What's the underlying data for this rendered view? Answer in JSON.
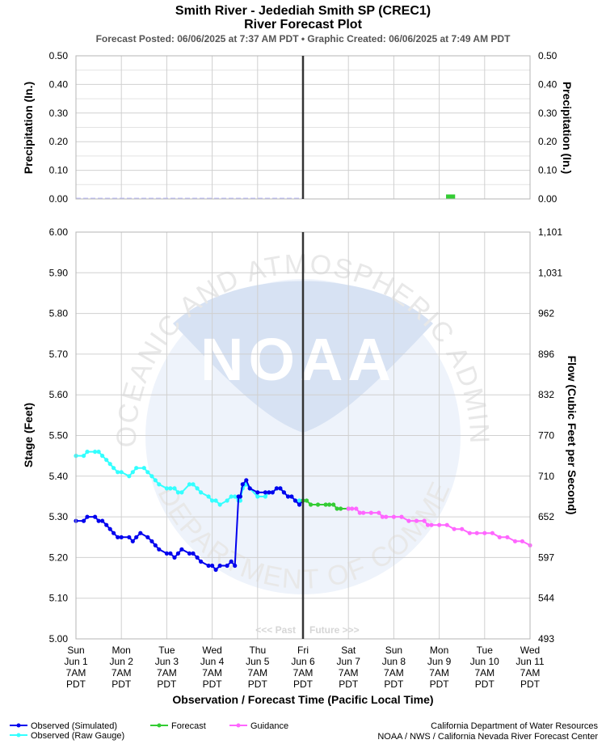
{
  "chart_data": {
    "type": "line",
    "title": "Smith River - Jedediah Smith SP (CREC1)",
    "subtitle": "River Forecast Plot",
    "posted": "Forecast Posted: 06/06/2025 at 7:37 AM PDT  •  Graphic Created: 06/06/2025 at 7:49 AM PDT",
    "xlabel": "Observation / Forecast Time (Pacific Local Time)",
    "x_ticks": [
      [
        "Sun",
        "Jun 1",
        "7AM",
        "PDT"
      ],
      [
        "Mon",
        "Jun 2",
        "7AM",
        "PDT"
      ],
      [
        "Tue",
        "Jun 3",
        "7AM",
        "PDT"
      ],
      [
        "Wed",
        "Jun 4",
        "7AM",
        "PDT"
      ],
      [
        "Thu",
        "Jun 5",
        "7AM",
        "PDT"
      ],
      [
        "Fri",
        "Jun 6",
        "7AM",
        "PDT"
      ],
      [
        "Sat",
        "Jun 7",
        "7AM",
        "PDT"
      ],
      [
        "Sun",
        "Jun 8",
        "7AM",
        "PDT"
      ],
      [
        "Mon",
        "Jun 9",
        "7AM",
        "PDT"
      ],
      [
        "Tue",
        "Jun 10",
        "7AM",
        "PDT"
      ],
      [
        "Wed",
        "Jun 11",
        "7AM",
        "PDT"
      ]
    ],
    "now_day": 5,
    "past_label": "<<< Past",
    "future_label": "Future >>>",
    "precip": {
      "ylabel_left": "Precipitation (In.)",
      "ylabel_right": "Precipitation (In.)",
      "ylim": [
        0,
        0.5
      ],
      "ticks": [
        "0.00",
        "0.10",
        "0.20",
        "0.30",
        "0.40",
        "0.50"
      ],
      "observed": {
        "x": [
          0,
          5
        ],
        "y": [
          0,
          0
        ]
      },
      "forecast": {
        "x": [
          8.15,
          8.35
        ],
        "y": [
          0.01,
          0.01
        ]
      }
    },
    "stage": {
      "ylabel_left": "Stage (Feet)",
      "ylabel_right": "Flow (Cubic Feet per Second)",
      "ylim": [
        5.0,
        6.0
      ],
      "ticks_left": [
        "5.00",
        "5.10",
        "5.20",
        "5.30",
        "5.40",
        "5.50",
        "5.60",
        "5.70",
        "5.80",
        "5.90",
        "6.00"
      ],
      "ticks_right": [
        "493",
        "544",
        "597",
        "652",
        "710",
        "770",
        "832",
        "896",
        "962",
        "1,031",
        "1,101"
      ]
    },
    "series": [
      {
        "name": "Observed (Simulated)",
        "color": "#0000ee",
        "x": [
          0,
          0.17,
          0.25,
          0.42,
          0.5,
          0.58,
          0.67,
          0.75,
          0.83,
          0.92,
          1.0,
          1.17,
          1.25,
          1.33,
          1.42,
          1.58,
          1.67,
          1.75,
          1.83,
          2.0,
          2.08,
          2.17,
          2.25,
          2.33,
          2.5,
          2.58,
          2.67,
          2.75,
          2.92,
          3.0,
          3.08,
          3.17,
          3.33,
          3.42,
          3.5,
          3.58,
          3.62,
          3.67,
          3.75,
          3.83,
          4.0,
          4.17,
          4.25,
          4.33,
          4.42,
          4.5,
          4.58,
          4.67,
          4.75,
          4.83,
          4.92,
          5.0
        ],
        "y": [
          5.29,
          5.29,
          5.3,
          5.3,
          5.29,
          5.29,
          5.28,
          5.27,
          5.26,
          5.25,
          5.25,
          5.25,
          5.24,
          5.25,
          5.26,
          5.25,
          5.24,
          5.23,
          5.22,
          5.21,
          5.21,
          5.2,
          5.21,
          5.22,
          5.21,
          5.21,
          5.2,
          5.19,
          5.18,
          5.18,
          5.17,
          5.18,
          5.18,
          5.19,
          5.18,
          5.35,
          5.35,
          5.38,
          5.39,
          5.37,
          5.36,
          5.36,
          5.36,
          5.36,
          5.37,
          5.37,
          5.36,
          5.35,
          5.35,
          5.34,
          5.33,
          5.34
        ]
      },
      {
        "name": "Observed (Raw Gauge)",
        "color": "#33ffff",
        "x": [
          0,
          0.17,
          0.25,
          0.42,
          0.5,
          0.58,
          0.67,
          0.75,
          0.83,
          0.92,
          1.0,
          1.17,
          1.25,
          1.33,
          1.5,
          1.58,
          1.67,
          1.75,
          1.83,
          2.0,
          2.08,
          2.17,
          2.25,
          2.33,
          2.5,
          2.58,
          2.67,
          2.75,
          2.92,
          3.0,
          3.08,
          3.17,
          3.33,
          3.42,
          3.5,
          3.58,
          3.62,
          3.67,
          3.75,
          3.83,
          4.0,
          4.17,
          4.25,
          4.33,
          4.42,
          4.5,
          4.58,
          4.67,
          4.75,
          4.83,
          4.92,
          5.0
        ],
        "y": [
          5.45,
          5.45,
          5.46,
          5.46,
          5.46,
          5.45,
          5.44,
          5.43,
          5.42,
          5.41,
          5.41,
          5.4,
          5.41,
          5.42,
          5.42,
          5.41,
          5.4,
          5.39,
          5.38,
          5.37,
          5.37,
          5.37,
          5.36,
          5.36,
          5.38,
          5.38,
          5.37,
          5.36,
          5.35,
          5.34,
          5.34,
          5.33,
          5.34,
          5.35,
          5.35,
          5.34,
          5.34,
          5.37,
          5.38,
          5.37,
          5.35,
          5.35,
          5.36,
          5.36,
          5.37,
          5.37,
          5.36,
          5.35,
          5.35,
          5.34,
          5.34,
          5.34
        ]
      },
      {
        "name": "Forecast",
        "color": "#33cc33",
        "x": [
          5.0,
          5.08,
          5.17,
          5.33,
          5.5,
          5.58,
          5.67,
          5.75,
          5.83,
          6.0
        ],
        "y": [
          5.34,
          5.34,
          5.33,
          5.33,
          5.33,
          5.33,
          5.33,
          5.32,
          5.32,
          5.32
        ]
      },
      {
        "name": "Guidance",
        "color": "#ff66ff",
        "x": [
          6.0,
          6.08,
          6.17,
          6.25,
          6.33,
          6.5,
          6.67,
          6.75,
          6.83,
          7.0,
          7.17,
          7.33,
          7.5,
          7.67,
          7.75,
          7.83,
          8.0,
          8.17,
          8.33,
          8.5,
          8.67,
          8.83,
          9.0,
          9.17,
          9.33,
          9.5,
          9.67,
          9.83,
          10.0
        ],
        "y": [
          5.32,
          5.32,
          5.32,
          5.31,
          5.31,
          5.31,
          5.31,
          5.3,
          5.3,
          5.3,
          5.3,
          5.29,
          5.29,
          5.29,
          5.28,
          5.28,
          5.28,
          5.28,
          5.27,
          5.27,
          5.26,
          5.26,
          5.26,
          5.26,
          5.25,
          5.25,
          5.24,
          5.24,
          5.23
        ]
      }
    ],
    "legend": [
      "Observed (Simulated)",
      "Observed (Raw Gauge)",
      "Forecast",
      "Guidance"
    ],
    "credits": [
      "California Department of Water Resources",
      "NOAA / NWS / California Nevada River Forecast Center"
    ],
    "watermark": {
      "logo_text": "NOAA",
      "ring_text": "NATIONAL OCEANIC AND ATMOSPHERIC ADMINISTRATION",
      "ring_text_bottom": "U.S. DEPARTMENT OF COMMERCE"
    }
  }
}
